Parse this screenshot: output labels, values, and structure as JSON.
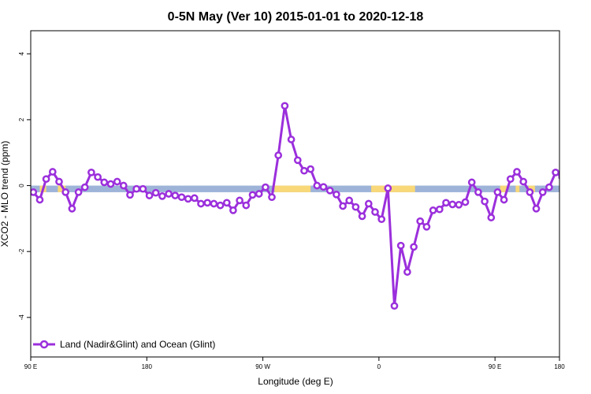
{
  "chart_data": {
    "type": "line",
    "title": "0-5N May (Ver 10)   2015-01-01 to 2020-12-18",
    "xlabel": "Longitude (deg E)",
    "ylabel": "XCO2 - MLO trend (ppm)",
    "xlim": [
      90,
      500
    ],
    "ylim": [
      -5.2,
      4.7
    ],
    "x_ticks": [
      {
        "value": 90,
        "label": "90 E"
      },
      {
        "value": 180,
        "label": "180"
      },
      {
        "value": 270,
        "label": "90 W"
      },
      {
        "value": 360,
        "label": "0"
      },
      {
        "value": 450,
        "label": "90 E"
      },
      {
        "value": 540,
        "label": "180"
      }
    ],
    "y_ticks": [
      {
        "value": -4,
        "label": "-4"
      },
      {
        "value": -2,
        "label": "-2"
      },
      {
        "value": 0,
        "label": "0"
      },
      {
        "value": 2,
        "label": "2"
      },
      {
        "value": 4,
        "label": "4"
      }
    ],
    "grid": false,
    "legend_position": "bottom-left",
    "surface_band": {
      "y_range": [
        -0.2,
        0.0
      ],
      "ocean_color": "#9eb3d8",
      "land_color": "#f8d878",
      "land_segments": [
        [
          97,
          102
        ],
        [
          111,
          117
        ],
        [
          279,
          307
        ],
        [
          354,
          388
        ],
        [
          454,
          459
        ],
        [
          466,
          469
        ],
        [
          476,
          481
        ]
      ]
    },
    "series": [
      {
        "name": "Land (Nadir&Glint) and Ocean (Glint)",
        "color": "#9b2fdc",
        "x": [
          92,
          97,
          102,
          107,
          112,
          117,
          122,
          127,
          132,
          137,
          142,
          147,
          152,
          157,
          162,
          167,
          172,
          177,
          182,
          187,
          192,
          197,
          202,
          207,
          212,
          217,
          222,
          227,
          232,
          237,
          242,
          247,
          252,
          257,
          262,
          267,
          272,
          277,
          282,
          287,
          292,
          297,
          302,
          307,
          312,
          317,
          322,
          327,
          332,
          337,
          342,
          347,
          352,
          357,
          362,
          367,
          372,
          377,
          382,
          387,
          392,
          397,
          402,
          407,
          412,
          417,
          422,
          427,
          432,
          437,
          442,
          447,
          452,
          457,
          462,
          467,
          472,
          477,
          482,
          487,
          492,
          497,
          502,
          507,
          512,
          517,
          522,
          527,
          532,
          537
        ],
        "y": [
          -0.2,
          -0.43,
          0.2,
          0.42,
          0.12,
          -0.2,
          -0.7,
          -0.2,
          -0.05,
          0.4,
          0.26,
          0.1,
          0.05,
          0.12,
          0.0,
          -0.28,
          -0.1,
          -0.1,
          -0.3,
          -0.22,
          -0.32,
          -0.25,
          -0.3,
          -0.35,
          -0.4,
          -0.38,
          -0.55,
          -0.52,
          -0.55,
          -0.6,
          -0.52,
          -0.75,
          -0.45,
          -0.6,
          -0.28,
          -0.25,
          -0.05,
          -0.35,
          0.92,
          2.42,
          1.4,
          0.77,
          0.45,
          0.5,
          0.0,
          -0.04,
          -0.15,
          -0.27,
          -0.62,
          -0.45,
          -0.65,
          -0.93,
          -0.55,
          -0.8,
          -1.02,
          -0.08,
          -3.65,
          -1.82,
          -2.62,
          -1.86,
          -1.08,
          -1.25,
          -0.75,
          -0.72,
          -0.52,
          -0.57,
          -0.58,
          -0.5,
          0.1,
          -0.2,
          -0.48,
          -0.97,
          -0.2,
          -0.43,
          0.2,
          0.42,
          0.12,
          -0.2,
          -0.7,
          -0.2,
          -0.05,
          0.4,
          0.26,
          0.1,
          0.05,
          0.12,
          0.0,
          -0.28,
          -0.1,
          -0.1
        ]
      }
    ]
  }
}
